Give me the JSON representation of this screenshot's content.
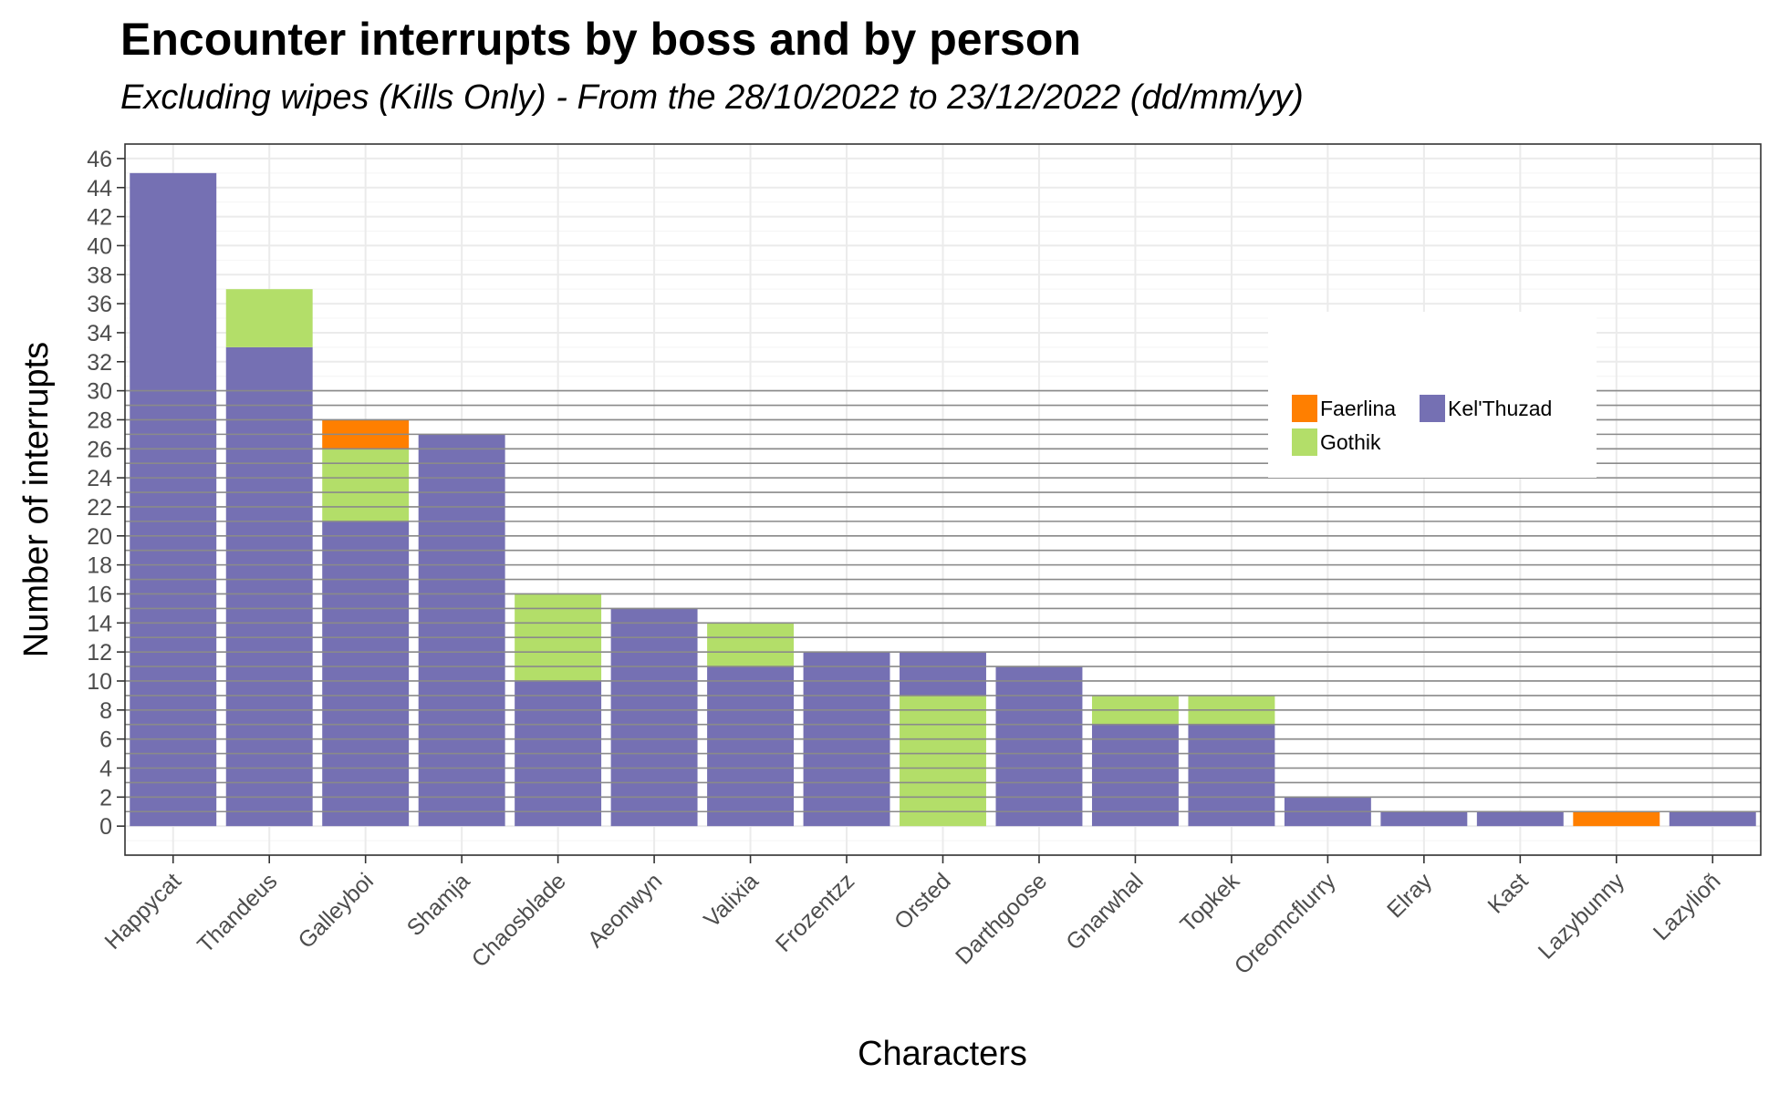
{
  "chart_data": {
    "type": "bar",
    "stacked": true,
    "title": "Encounter interrupts by boss and by person",
    "subtitle": "Excluding wipes (Kills Only) - From the 28/10/2022 to 23/12/2022 (dd/mm/yy)",
    "xlabel": "Characters",
    "ylabel": "Number of interrupts",
    "categories": [
      "Happycat",
      "Thandeus",
      "Galleyboi",
      "Shamja",
      "Chaosblade",
      "Aeonwyn",
      "Valixia",
      "Frozentzz",
      "Orsted",
      "Darthgoose",
      "Gnarwhal",
      "Topkek",
      "Oreomcflurry",
      "Elray",
      "Kast",
      "Lazybunny",
      "Lazylioñ"
    ],
    "series": [
      {
        "name": "Gothik",
        "color": "#b3de69",
        "values": [
          0,
          4,
          5,
          0,
          6,
          0,
          3,
          0,
          9,
          0,
          2,
          2,
          0,
          0,
          0,
          0,
          0
        ]
      },
      {
        "name": "Kel'Thuzad",
        "color": "#7570b3",
        "values": [
          45,
          33,
          21,
          27,
          10,
          15,
          11,
          12,
          3,
          11,
          7,
          7,
          2,
          1,
          1,
          0,
          1
        ]
      },
      {
        "name": "Faerlina",
        "color": "#ff7f00",
        "values": [
          0,
          0,
          2,
          0,
          0,
          0,
          0,
          0,
          0,
          0,
          0,
          0,
          0,
          0,
          0,
          1,
          0
        ]
      }
    ],
    "stack_order_bottom_to_top": [
      "Kel'Thuzad",
      "Gothik",
      "Faerlina"
    ],
    "orsted_stack_order_bottom_to_top": [
      "Gothik",
      "Kel'Thuzad"
    ],
    "ylim": [
      -2,
      47
    ],
    "yticks": [
      0,
      2,
      4,
      6,
      8,
      10,
      12,
      14,
      16,
      18,
      20,
      22,
      24,
      26,
      28,
      30,
      32,
      34,
      36,
      38,
      40,
      42,
      44,
      46
    ],
    "grid": true,
    "legend": {
      "placement": "inside-right",
      "entries": [
        {
          "name": "Faerlina",
          "color": "#ff7f00"
        },
        {
          "name": "Kel'Thuzad",
          "color": "#7570b3"
        },
        {
          "name": "Gothik",
          "color": "#b3de69"
        }
      ]
    }
  }
}
